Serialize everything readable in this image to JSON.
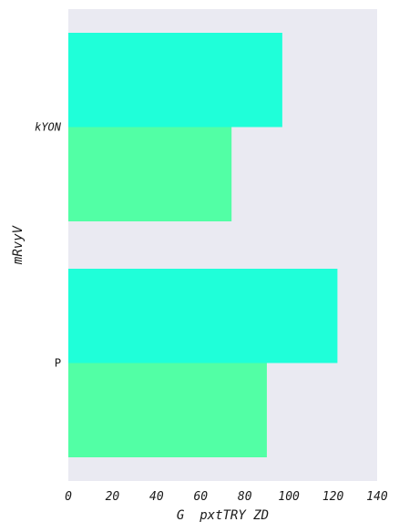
{
  "chart_data": {
    "type": "bar",
    "orientation": "horizontal",
    "categories": [
      "kYON",
      "P"
    ],
    "series": [
      {
        "values": [
          97,
          122
        ]
      },
      {
        "values": [
          74,
          90
        ]
      }
    ],
    "series_colors": [
      "#1fffd9",
      "#52ffa5"
    ],
    "xlabel": "G  pxtTRY ZD",
    "ylabel": "mRvyV",
    "xlim": [
      0,
      140
    ],
    "xticks": [
      0,
      20,
      40,
      60,
      80,
      100,
      120,
      140
    ],
    "xtick_labels": [
      "0",
      "20",
      "40",
      "60",
      "80",
      "100",
      "120",
      "140"
    ],
    "grid": false,
    "background_color": "#eaeaf2"
  }
}
